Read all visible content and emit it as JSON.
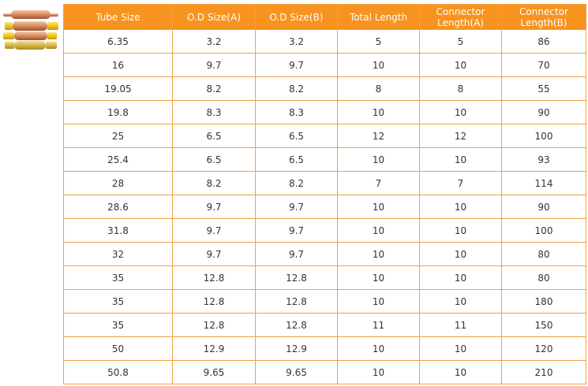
{
  "table": {
    "headers": [
      "Tube Size",
      "O.D Size(A)",
      "O.D Size(B)",
      "Total Length",
      "Connector Length(A)",
      "Connector Length(B)"
    ],
    "rows": [
      [
        "6.35",
        "3.2",
        "3.2",
        "5",
        "5",
        "86"
      ],
      [
        "16",
        "9.7",
        "9.7",
        "10",
        "10",
        "70"
      ],
      [
        "19.05",
        "8.2",
        "8.2",
        "8",
        "8",
        "55"
      ],
      [
        "19.8",
        "8.3",
        "8.3",
        "10",
        "10",
        "90"
      ],
      [
        "25",
        "6.5",
        "6.5",
        "12",
        "12",
        "100"
      ],
      [
        "25.4",
        "6.5",
        "6.5",
        "10",
        "10",
        "93"
      ],
      [
        "28",
        "8.2",
        "8.2",
        "7",
        "7",
        "114"
      ],
      [
        "28.6",
        "9.7",
        "9.7",
        "10",
        "10",
        "90"
      ],
      [
        "31.8",
        "9.7",
        "9.7",
        "10",
        "10",
        "100"
      ],
      [
        "32",
        "9.7",
        "9.7",
        "10",
        "10",
        "80"
      ],
      [
        "35",
        "12.8",
        "12.8",
        "10",
        "10",
        "80"
      ],
      [
        "35",
        "12.8",
        "12.8",
        "10",
        "10",
        "180"
      ],
      [
        "35",
        "12.8",
        "12.8",
        "11",
        "11",
        "150"
      ],
      [
        "50",
        "12.9",
        "12.9",
        "10",
        "10",
        "120"
      ],
      [
        "50.8",
        "9.65",
        "9.65",
        "10",
        "10",
        "210"
      ]
    ]
  },
  "colors": {
    "header_bg": "#f7931e",
    "border": "#f0a040",
    "copper": "#d98a5c",
    "yellow_cap": "#f2c31a"
  },
  "image": {
    "icon": "copper-tube-product-icon"
  }
}
